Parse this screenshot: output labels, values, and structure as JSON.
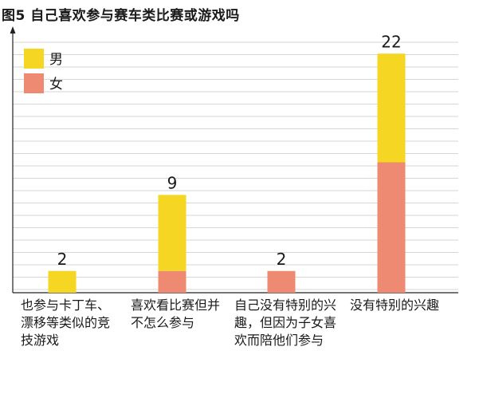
{
  "chart_data": {
    "type": "bar",
    "stacked": true,
    "title": "图5 自己喜欢参与赛车类比赛或游戏吗",
    "categories": [
      "也参与卡丁车、漂移等类似的竞技游戏",
      "喜欢看比赛但并不怎么参与",
      "自己没有特别的兴趣，但因为子女喜欢而陪他们参与",
      "没有特别的兴趣"
    ],
    "series": [
      {
        "name": "女",
        "color": "#ef8a72",
        "values": [
          0,
          2,
          2,
          12
        ]
      },
      {
        "name": "男",
        "color": "#f5d623",
        "values": [
          2,
          7,
          0,
          10
        ]
      }
    ],
    "totals": [
      "2",
      "9",
      "2",
      "22"
    ],
    "ylim": [
      0,
      24
    ],
    "grid": true,
    "legend_position": "top-left"
  }
}
